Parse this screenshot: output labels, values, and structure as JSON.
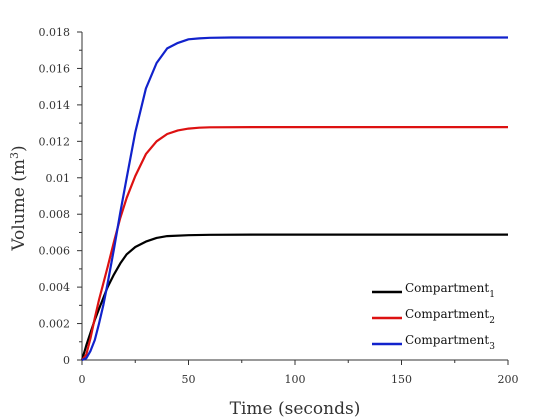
{
  "chart_data": {
    "type": "line",
    "xlabel": "Time (seconds)",
    "ylabel": "Volume (m",
    "ylabel_sup": "3",
    "ylabel_close": ")",
    "xlim": [
      0,
      200
    ],
    "ylim": [
      0,
      0.018
    ],
    "x_ticks": [
      0,
      50,
      100,
      150,
      200
    ],
    "x_tick_labels": [
      "0",
      "50",
      "100",
      "150",
      "200"
    ],
    "y_ticks": [
      0,
      0.002,
      0.004,
      0.006,
      0.008,
      0.01,
      0.012,
      0.014,
      0.016,
      0.018
    ],
    "y_tick_labels": [
      "0",
      "0.002",
      "0.004",
      "0.006",
      "0.008",
      "0.01",
      "0.012",
      "0.014",
      "0.016",
      "0.018"
    ],
    "grid": false,
    "legend_position": "bottom-right",
    "series": [
      {
        "name": "Compartment",
        "subscript": "1",
        "color": "#000000",
        "x": [
          0,
          2,
          4,
          6,
          8,
          10,
          12,
          15,
          18,
          21,
          25,
          30,
          35,
          40,
          50,
          60,
          80,
          100,
          150,
          200
        ],
        "y": [
          0,
          0.0008,
          0.0015,
          0.0022,
          0.0028,
          0.0034,
          0.004,
          0.0047,
          0.0053,
          0.0058,
          0.0062,
          0.0065,
          0.0067,
          0.0068,
          0.00685,
          0.00687,
          0.00688,
          0.00688,
          0.00688,
          0.00688
        ]
      },
      {
        "name": "Compartment",
        "subscript": "2",
        "color": "#dd1111",
        "x": [
          0,
          2,
          4,
          6,
          8,
          10,
          12,
          15,
          18,
          21,
          25,
          30,
          35,
          40,
          45,
          50,
          55,
          60,
          80,
          100,
          150,
          200
        ],
        "y": [
          0,
          0.0003,
          0.0012,
          0.0023,
          0.0033,
          0.0042,
          0.0051,
          0.0065,
          0.0078,
          0.0089,
          0.0101,
          0.0113,
          0.012,
          0.0124,
          0.0126,
          0.0127,
          0.01275,
          0.01277,
          0.01278,
          0.01278,
          0.01278,
          0.01278
        ]
      },
      {
        "name": "Compartment",
        "subscript": "3",
        "color": "#1122cc",
        "x": [
          0,
          2,
          4,
          6,
          8,
          10,
          12,
          15,
          18,
          21,
          25,
          30,
          35,
          40,
          45,
          50,
          55,
          60,
          70,
          80,
          100,
          150,
          200
        ],
        "y": [
          0,
          0.0001,
          0.0005,
          0.0011,
          0.002,
          0.003,
          0.0042,
          0.0061,
          0.0081,
          0.01,
          0.0125,
          0.0149,
          0.0163,
          0.0171,
          0.0174,
          0.0176,
          0.01765,
          0.01768,
          0.0177,
          0.0177,
          0.0177,
          0.0177,
          0.0177
        ]
      }
    ]
  }
}
